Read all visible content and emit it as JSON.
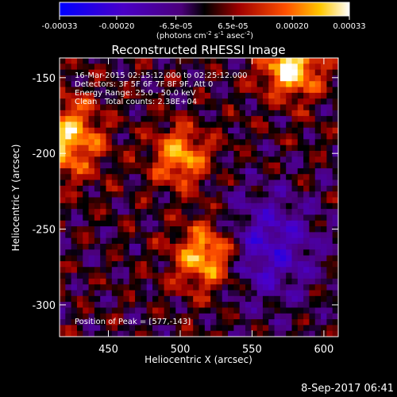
{
  "colorbar": {
    "tick_labels": [
      "-0.00033",
      "-0.00020",
      "-6.5e-05",
      "6.5e-05",
      "0.00020",
      "0.00033"
    ],
    "tick_values": [
      -0.00033,
      -0.0002,
      -6.5e-05,
      6.5e-05,
      0.0002,
      0.00033
    ],
    "range": [
      -0.00033,
      0.00033
    ],
    "units_main": "(photons cm",
    "units_exp1": "-2",
    "units_s": " s",
    "units_exp2": "-1",
    "units_asec": " asec",
    "units_exp3": "-2",
    "units_close": ")"
  },
  "info": {
    "line1": "16-Mar-2015 02:15:12.000 to 02:25:12.000",
    "line2": "Detectors: 3F 5F 6F 7F 8F 9F, Att 0",
    "line3": "Energy Range: 25.0 - 50.0 keV",
    "line4": "Clean   Total counts: 2.38E+04",
    "peak": "Position of Peak = [577,-143]"
  },
  "footer": {
    "timestamp": "8-Sep-2017 06:41"
  },
  "chart_data": {
    "type": "heatmap",
    "title": "Reconstructed RHESSI Image",
    "xlabel": "Heliocentric X (arcsec)",
    "ylabel": "Heliocentric Y (arcsec)",
    "xlim": [
      416,
      610
    ],
    "ylim": [
      -321,
      -137
    ],
    "x_ticks": [
      450,
      500,
      550,
      600
    ],
    "y_ticks": [
      -150,
      -200,
      -250,
      -300
    ],
    "colormap": "rhessi-blue-purple-red-yellow-white",
    "value_range": [
      -0.00033,
      0.00033
    ],
    "sources": [
      {
        "x": 577,
        "y": -143,
        "radius": 14,
        "peak": 0.00033
      },
      {
        "x": 420,
        "y": -190,
        "radius": 18,
        "peak": 0.00027
      },
      {
        "x": 518,
        "y": -268,
        "radius": 16,
        "peak": 0.00029
      },
      {
        "x": 500,
        "y": -202,
        "radius": 14,
        "peak": 0.00024
      }
    ]
  }
}
